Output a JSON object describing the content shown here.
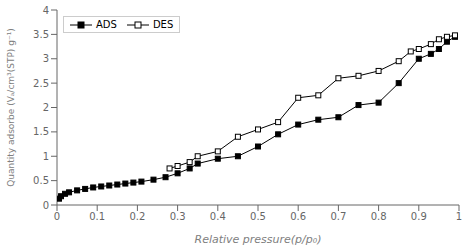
{
  "chart_data": {
    "type": "line",
    "x_label": "Relative pressure(p/p₀)",
    "y_label": "Quantity adsorbe (Vₐ/cm³(STP) g⁻¹)",
    "series": [
      {
        "name": "ADS",
        "color": "#000000",
        "marker": "square",
        "x": [
          0.005,
          0.01,
          0.02,
          0.03,
          0.05,
          0.07,
          0.09,
          0.11,
          0.13,
          0.15,
          0.17,
          0.19,
          0.21,
          0.24,
          0.27,
          0.3,
          0.33,
          0.35,
          0.4,
          0.45,
          0.5,
          0.55,
          0.6,
          0.65,
          0.7,
          0.75,
          0.8,
          0.85,
          0.9,
          0.93,
          0.95,
          0.97,
          0.99
        ],
        "values": [
          0.13,
          0.18,
          0.23,
          0.26,
          0.3,
          0.33,
          0.36,
          0.38,
          0.4,
          0.42,
          0.44,
          0.46,
          0.48,
          0.52,
          0.57,
          0.65,
          0.75,
          0.85,
          0.95,
          1.0,
          1.2,
          1.45,
          1.65,
          1.75,
          1.8,
          2.05,
          2.1,
          2.5,
          3.0,
          3.1,
          3.2,
          3.35,
          3.45
        ]
      },
      {
        "name": "DES",
        "color": "#000000",
        "marker": "square-open",
        "x": [
          0.28,
          0.3,
          0.33,
          0.35,
          0.4,
          0.45,
          0.5,
          0.55,
          0.6,
          0.65,
          0.7,
          0.75,
          0.8,
          0.85,
          0.88,
          0.9,
          0.93,
          0.95,
          0.97,
          0.99
        ],
        "values": [
          0.75,
          0.8,
          0.88,
          1.0,
          1.1,
          1.4,
          1.55,
          1.7,
          2.2,
          2.25,
          2.6,
          2.65,
          2.75,
          2.95,
          3.15,
          3.2,
          3.3,
          3.4,
          3.45,
          3.48
        ]
      }
    ],
    "xlim": [
      0,
      1.0
    ],
    "ylim": [
      0,
      4.0
    ],
    "xticks": [
      0,
      0.1,
      0.2,
      0.3,
      0.4,
      0.5,
      0.6,
      0.7,
      0.8,
      0.9,
      1.0
    ],
    "yticks": [
      0,
      0.5,
      1.0,
      1.5,
      2.0,
      2.5,
      3.0,
      3.5,
      4.0
    ],
    "legend": "upper left",
    "grid": false
  }
}
